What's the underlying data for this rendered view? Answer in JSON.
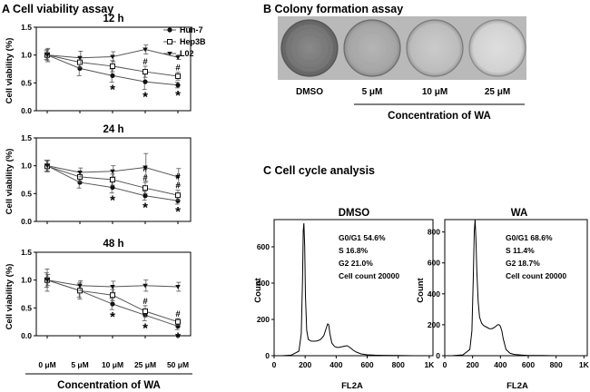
{
  "panel_a": {
    "title": "A Cell viability assay",
    "legend": [
      {
        "name": "Huh-7",
        "marker": "circle-filled"
      },
      {
        "name": "Hep3B",
        "marker": "square-open"
      },
      {
        "name": "L02",
        "marker": "triangle-down-filled"
      }
    ],
    "xlabel": "Concentration of WA",
    "x_ticks": [
      "0 μM",
      "5 μM",
      "10 μM",
      "25 μM",
      "50 μM"
    ],
    "ylabel": "Cell viability (%)",
    "y_ticks": [
      "0.0",
      "0.5",
      "1.0",
      "1.5"
    ]
  },
  "panel_b": {
    "title": "B  Colony formation assay",
    "dishes": [
      "DMSO",
      "5 μM",
      "10 μM",
      "25 μM"
    ],
    "xlabel": "Concentration of WA"
  },
  "panel_c": {
    "title": "C  Cell cycle analysis",
    "ylabel": "Count",
    "xlabel": "FL2A",
    "x_ticks": [
      "0",
      "200",
      "400",
      "600",
      "800",
      "1K"
    ]
  },
  "chart_data": [
    {
      "type": "line",
      "title": "12 h",
      "xlabel": "Concentration of WA",
      "ylabel": "Cell viability (%)",
      "categories": [
        "0 μM",
        "5 μM",
        "10 μM",
        "25 μM",
        "50 μM"
      ],
      "ylim": [
        0,
        1.5
      ],
      "series": [
        {
          "name": "Huh-7",
          "values": [
            1.0,
            0.76,
            0.63,
            0.52,
            0.46
          ],
          "errors": [
            0.08,
            0.13,
            0.12,
            0.14,
            0.05
          ]
        },
        {
          "name": "Hep3B",
          "values": [
            1.0,
            0.87,
            0.8,
            0.7,
            0.62
          ],
          "errors": [
            0.1,
            0.09,
            0.1,
            0.1,
            0.07
          ]
        },
        {
          "name": "L02",
          "values": [
            1.0,
            0.95,
            0.97,
            1.1,
            0.96
          ],
          "errors": [
            0.12,
            0.12,
            0.09,
            0.08,
            0.04
          ]
        }
      ],
      "markers": [
        {
          "symbol": "*",
          "category": "10 μM"
        },
        {
          "symbol": "*",
          "category": "25 μM"
        },
        {
          "symbol": "*",
          "category": "50 μM"
        },
        {
          "symbol": "#",
          "category": "25 μM"
        },
        {
          "symbol": "#",
          "category": "50 μM"
        }
      ]
    },
    {
      "type": "line",
      "title": "24 h",
      "xlabel": "Concentration of WA",
      "ylabel": "Cell viability (%)",
      "categories": [
        "0 μM",
        "5 μM",
        "10 μM",
        "25 μM",
        "50 μM"
      ],
      "ylim": [
        0,
        1.5
      ],
      "series": [
        {
          "name": "Huh-7",
          "values": [
            1.0,
            0.7,
            0.61,
            0.46,
            0.37
          ],
          "errors": [
            0.1,
            0.1,
            0.1,
            0.08,
            0.06
          ]
        },
        {
          "name": "Hep3B",
          "values": [
            0.99,
            0.8,
            0.75,
            0.6,
            0.47
          ],
          "errors": [
            0.1,
            0.09,
            0.1,
            0.1,
            0.09
          ]
        },
        {
          "name": "L02",
          "values": [
            1.0,
            0.88,
            0.9,
            0.97,
            0.8
          ],
          "errors": [
            0.1,
            0.08,
            0.1,
            0.25,
            0.15
          ]
        }
      ],
      "markers": [
        {
          "symbol": "*",
          "category": "10 μM"
        },
        {
          "symbol": "*",
          "category": "25 μM"
        },
        {
          "symbol": "*",
          "category": "50 μM"
        },
        {
          "symbol": "#",
          "category": "25 μM"
        },
        {
          "symbol": "#",
          "category": "25 μM"
        },
        {
          "symbol": "#",
          "category": "50 μM"
        },
        {
          "symbol": "#",
          "category": "50 μM"
        }
      ]
    },
    {
      "type": "line",
      "title": "48 h",
      "xlabel": "Concentration of WA",
      "ylabel": "Cell viability (%)",
      "categories": [
        "0 μM",
        "5 μM",
        "10 μM",
        "25 μM",
        "50 μM"
      ],
      "ylim": [
        0,
        1.5
      ],
      "series": [
        {
          "name": "Huh-7",
          "values": [
            1.0,
            0.81,
            0.57,
            0.37,
            0.17
          ],
          "errors": [
            0.13,
            0.12,
            0.1,
            0.1,
            0.06
          ]
        },
        {
          "name": "Hep3B",
          "values": [
            1.0,
            0.81,
            0.73,
            0.44,
            0.25
          ],
          "errors": [
            0.2,
            0.15,
            0.1,
            0.1,
            0.06
          ]
        },
        {
          "name": "L02",
          "values": [
            1.0,
            0.9,
            0.88,
            0.9,
            0.88
          ],
          "errors": [
            0.1,
            0.09,
            0.1,
            0.1,
            0.08
          ]
        }
      ],
      "markers": [
        {
          "symbol": "*",
          "category": "10 μM"
        },
        {
          "symbol": "*",
          "category": "25 μM"
        },
        {
          "symbol": "*",
          "category": "50 μM"
        },
        {
          "symbol": "#",
          "category": "25 μM"
        },
        {
          "symbol": "#",
          "category": "50 μM"
        }
      ]
    },
    {
      "type": "line",
      "title": "DMSO",
      "xlabel": "FL2A",
      "ylabel": "Count",
      "ylim": [
        0,
        750
      ],
      "y_ticks": [
        0,
        200,
        400,
        600
      ],
      "xlim": [
        0,
        1024
      ],
      "x": [
        50,
        110,
        160,
        175,
        183,
        188,
        192,
        197,
        202,
        210,
        220,
        240,
        260,
        280,
        300,
        320,
        335,
        345,
        352,
        360,
        372,
        390,
        410,
        430,
        450,
        470,
        490,
        510,
        530,
        560,
        600,
        650,
        700,
        800,
        900,
        1000
      ],
      "y": [
        0,
        3,
        25,
        120,
        420,
        690,
        730,
        600,
        330,
        140,
        90,
        80,
        80,
        82,
        90,
        110,
        150,
        175,
        170,
        120,
        70,
        50,
        45,
        48,
        52,
        55,
        45,
        30,
        20,
        10,
        5,
        3,
        2,
        1,
        0,
        0
      ],
      "annotation": {
        "G0/G1": "54.6%",
        "S": "16.8%",
        "G2": "21.0%",
        "Cell count": "20000"
      }
    },
    {
      "type": "line",
      "title": "WA",
      "xlabel": "FL2A",
      "ylabel": "Count",
      "ylim": [
        0,
        880
      ],
      "y_ticks": [
        0,
        200,
        400,
        600,
        800
      ],
      "xlim": [
        0,
        1024
      ],
      "x": [
        50,
        130,
        180,
        195,
        205,
        212,
        218,
        224,
        230,
        240,
        250,
        265,
        280,
        300,
        320,
        340,
        360,
        380,
        390,
        400,
        410,
        420,
        440,
        470,
        500,
        550,
        600,
        700,
        800,
        900,
        1000
      ],
      "y": [
        0,
        5,
        40,
        160,
        500,
        800,
        880,
        760,
        550,
        350,
        250,
        210,
        195,
        185,
        175,
        175,
        185,
        200,
        200,
        190,
        160,
        110,
        40,
        15,
        8,
        4,
        2,
        1,
        0,
        0,
        0
      ],
      "annotation": {
        "G0/G1": "68.6%",
        "S": "11.4%",
        "G2": "18.7%",
        "Cell count": "20000"
      }
    }
  ],
  "annotations": {
    "dmso": [
      "G0/G1  54.6%",
      "S  16.8%",
      "G2  21.0%",
      "Cell count  20000"
    ],
    "wa": [
      "G0/G1  68.6%",
      "S  11.4%",
      "G2  18.7%",
      "Cell count  20000"
    ]
  },
  "colors": {
    "axis": "#000000",
    "series_line": "#555555",
    "dish_dark": "#6e6e6e",
    "dish_light": "#c8c8c8",
    "bg": "#ffffff"
  }
}
